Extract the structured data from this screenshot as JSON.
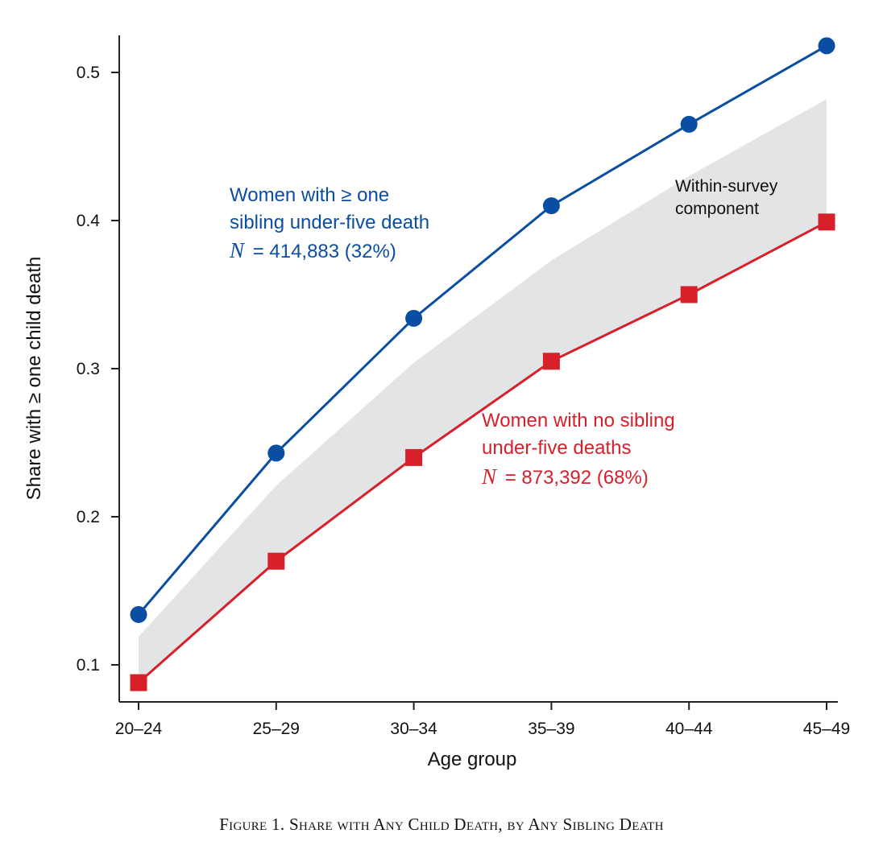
{
  "caption": "Figure 1. Share with Any Child Death, by Any Sibling Death",
  "colors": {
    "blue": "#0a4ea3",
    "red": "#d8202a",
    "band": "#e3e4e6",
    "axis": "#222222"
  },
  "chart_data": {
    "type": "line",
    "xlabel": "Age group",
    "ylabel": "Share with ≥ one child death",
    "categories": [
      "20–24",
      "25–29",
      "30–34",
      "35–39",
      "40–44",
      "45–49"
    ],
    "ylim": [
      0.075,
      0.525
    ],
    "yticks": [
      0.1,
      0.2,
      0.3,
      0.4,
      0.5
    ],
    "yticks_text": [
      "0.1",
      "0.2",
      "0.3",
      "0.4",
      "0.5"
    ],
    "grid": false,
    "series": [
      {
        "key": "sib",
        "marker": "circle",
        "values": [
          0.134,
          0.243,
          0.334,
          0.41,
          0.465,
          0.518
        ],
        "label_lines": [
          "Women with ≥ one",
          "sibling under-five death"
        ],
        "n_label": "N",
        "n_value": "= 414,883 (32%)"
      },
      {
        "key": "nosib",
        "marker": "square",
        "values": [
          0.088,
          0.17,
          0.24,
          0.305,
          0.35,
          0.399
        ],
        "label_lines": [
          "Women with no sibling",
          "under-five deaths"
        ],
        "n_label": "N",
        "n_value": "= 873,392 (68%)"
      }
    ],
    "band": {
      "label_lines": [
        "Within-survey",
        "component"
      ],
      "upper": [
        0.119,
        0.221,
        0.304,
        0.373,
        0.43,
        0.482
      ],
      "lower": [
        0.088,
        0.17,
        0.24,
        0.305,
        0.35,
        0.399
      ]
    }
  }
}
